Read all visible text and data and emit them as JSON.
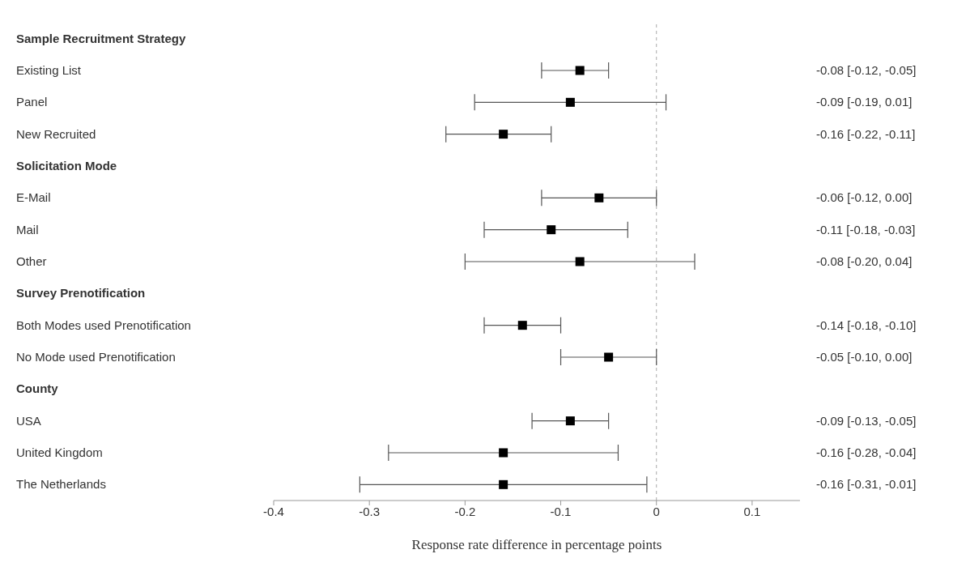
{
  "chart_data": {
    "type": "scatter",
    "orientation": "horizontal",
    "xlabel": "Response rate difference in percentage points",
    "categories": [
      "Sample Recruitment Strategy",
      "Existing List",
      "Panel",
      "New Recruited",
      "Solicitation Mode",
      "E-Mail",
      "Mail",
      "Other",
      "Survey Prenotification",
      "Both Modes used Prenotification",
      "No Mode used Prenotification",
      "County",
      "USA",
      "United Kingdom",
      "The Netherlands"
    ],
    "values": [
      null,
      -0.08,
      -0.09,
      -0.16,
      null,
      -0.06,
      -0.11,
      -0.08,
      null,
      -0.14,
      -0.05,
      null,
      -0.09,
      -0.16,
      -0.16
    ],
    "errors": [
      null,
      [
        -0.12,
        -0.05
      ],
      [
        -0.19,
        0.01
      ],
      [
        -0.22,
        -0.11
      ],
      null,
      [
        -0.12,
        0.0
      ],
      [
        -0.18,
        -0.03
      ],
      [
        -0.2,
        0.04
      ],
      null,
      [
        -0.18,
        -0.1
      ],
      [
        -0.1,
        0.0
      ],
      null,
      [
        -0.13,
        -0.05
      ],
      [
        -0.28,
        -0.04
      ],
      [
        -0.31,
        -0.01
      ]
    ],
    "value_labels": [
      null,
      "-0.08 [-0.12, -0.05]",
      "-0.09 [-0.19, 0.01]",
      "-0.16 [-0.22, -0.11]",
      null,
      "-0.06 [-0.12, 0.00]",
      "-0.11 [-0.18, -0.03]",
      "-0.08 [-0.20, 0.04]",
      null,
      "-0.14 [-0.18, -0.10]",
      "-0.05 [-0.10, 0.00]",
      null,
      "-0.09 [-0.13, -0.05]",
      "-0.16 [-0.28, -0.04]",
      "-0.16 [-0.31, -0.01]"
    ],
    "color": "#000000",
    "marker": "square",
    "xlim": [
      -0.4,
      0.15
    ],
    "xticks": [
      -0.4,
      -0.3,
      -0.2,
      -0.1,
      0,
      0.1
    ],
    "ref_lines": [
      {
        "axis": "x",
        "value": 0,
        "color": "#aaaaaa",
        "line_style": "dashed"
      }
    ]
  }
}
